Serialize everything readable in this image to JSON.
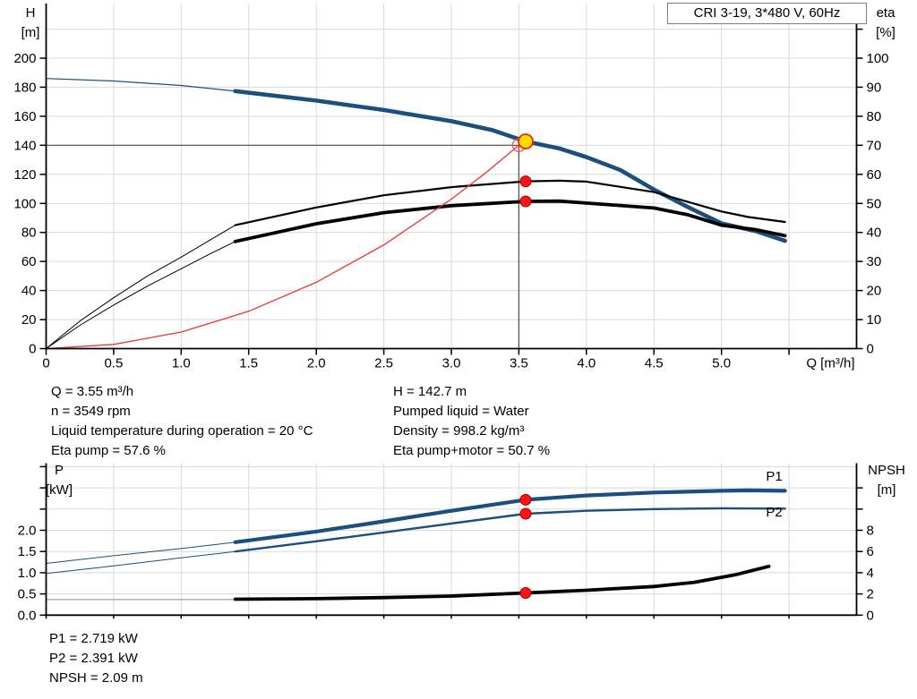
{
  "axis_titles": {
    "h": [
      "H",
      "[m]"
    ],
    "eta": [
      "eta",
      "[%]"
    ],
    "p": [
      "P",
      "[kW]"
    ],
    "npsh": [
      "NPSH",
      "[m]"
    ]
  },
  "annotations": {
    "left": [
      "Q = 3.55 m³/h",
      "n = 3549 rpm",
      "Liquid temperature during operation = 20 °C",
      "Eta pump = 57.6 %"
    ],
    "right": [
      "H = 142.7 m",
      "Pumped liquid = Water",
      "Density = 998.2 kg/m³",
      "Eta pump+motor = 50.7 %"
    ],
    "bottom": [
      "P1 = 2.719 kW",
      "P2 = 2.391 kW",
      "NPSH = 2.09 m"
    ]
  },
  "colors": {
    "curve_blue": "#1b4f7e",
    "curve_black": "#000000",
    "system_red": "#f0342c",
    "marker_red": "#ff1414",
    "marker_red_edge": "#a80000",
    "marker_yellow": "#ffdf00",
    "grid": "#d9d9d9",
    "crosshair": "#4d4d4d",
    "npsh_gray": "#8c8c8c"
  },
  "chart_data": [
    {
      "type": "line",
      "title": "CRI 3-19, 3*480 V, 60Hz",
      "x": {
        "label": "Q [m³/h]",
        "min": 0,
        "max": 6,
        "step": 0.5,
        "tick_max": 5.5,
        "label_max": 5.0,
        "ticklen": 7
      },
      "y_left": {
        "label": "H [m]",
        "min": 0,
        "max": 235,
        "step": 20,
        "grid_max": 220,
        "tick_max": 200,
        "label_max": 200,
        "dec": 0
      },
      "y_right": {
        "label": "eta [%]",
        "min": 0,
        "max": 113,
        "step": 10,
        "tick_max": 110,
        "label_max": 100,
        "dec": 0
      },
      "crosshair": {
        "q": 3.5,
        "h": 140
      },
      "series": [
        {
          "name": "qh-lead",
          "axis": "left",
          "color": "curve_blue",
          "width": 1.2,
          "points": [
            [
              0,
              186
            ],
            [
              0.5,
              184.3
            ],
            [
              1.0,
              181.2
            ],
            [
              1.4,
              177.3
            ]
          ]
        },
        {
          "name": "qh-curve",
          "axis": "left",
          "color": "curve_blue",
          "width": 4.6,
          "points": [
            [
              1.4,
              177.3
            ],
            [
              2.0,
              170.8
            ],
            [
              2.5,
              164.3
            ],
            [
              3.0,
              156.6
            ],
            [
              3.3,
              150.6
            ],
            [
              3.55,
              142.7
            ],
            [
              3.8,
              137.8
            ],
            [
              4.0,
              131.9
            ],
            [
              4.25,
              123
            ],
            [
              4.5,
              109.5
            ],
            [
              4.75,
              97.5
            ],
            [
              5.0,
              86.2
            ],
            [
              5.25,
              81
            ],
            [
              5.47,
              74.2
            ]
          ]
        },
        {
          "name": "eta-pump-lead",
          "axis": "right",
          "color": "curve_black",
          "width": 1,
          "points": [
            [
              0,
              0
            ],
            [
              0.25,
              9.5
            ],
            [
              0.5,
              17.5
            ],
            [
              0.75,
              25
            ],
            [
              1.0,
              31.5
            ],
            [
              1.2,
              37
            ],
            [
              1.4,
              42.5
            ]
          ]
        },
        {
          "name": "eta-pump",
          "axis": "right",
          "color": "curve_black",
          "width": 2.2,
          "points": [
            [
              1.4,
              42.5
            ],
            [
              2.0,
              48.6
            ],
            [
              2.5,
              52.8
            ],
            [
              3.0,
              55.6
            ],
            [
              3.55,
              57.6
            ],
            [
              3.8,
              57.8
            ],
            [
              4.0,
              57.5
            ],
            [
              4.5,
              53.9
            ],
            [
              5.0,
              47.2
            ],
            [
              5.2,
              45.3
            ],
            [
              5.47,
              43.6
            ]
          ]
        },
        {
          "name": "eta-pump-motor-lead",
          "axis": "right",
          "color": "curve_black",
          "width": 1,
          "points": [
            [
              0,
              0
            ],
            [
              0.25,
              8
            ],
            [
              0.5,
              15
            ],
            [
              0.75,
              21.5
            ],
            [
              1.0,
              27.5
            ],
            [
              1.2,
              32.3
            ],
            [
              1.4,
              36.9
            ]
          ]
        },
        {
          "name": "eta-pump-motor",
          "axis": "right",
          "color": "curve_black",
          "width": 3.8,
          "points": [
            [
              1.4,
              36.9
            ],
            [
              2.0,
              43
            ],
            [
              2.5,
              46.8
            ],
            [
              3.0,
              49.2
            ],
            [
              3.55,
              50.7
            ],
            [
              3.8,
              50.8
            ],
            [
              4.0,
              50.1
            ],
            [
              4.5,
              48.4
            ],
            [
              4.75,
              46.1
            ],
            [
              5.0,
              42.5
            ],
            [
              5.25,
              41
            ],
            [
              5.47,
              38.9
            ]
          ]
        },
        {
          "name": "system-curve",
          "axis": "left",
          "color": "system_red",
          "width": 1.3,
          "points": [
            [
              0,
              0
            ],
            [
              0.5,
              2.9
            ],
            [
              1.0,
              11.4
            ],
            [
              1.5,
              25.7
            ],
            [
              2.0,
              45.7
            ],
            [
              2.5,
              71.4
            ],
            [
              3.0,
              102.9
            ],
            [
              3.25,
              120.7
            ],
            [
              3.5,
              140
            ]
          ]
        }
      ],
      "markers": [
        {
          "kind": "open",
          "axis": "left",
          "q": 3.5,
          "v": 140
        },
        {
          "kind": "duty",
          "axis": "left",
          "q": 3.55,
          "v": 142.7
        },
        {
          "kind": "dot",
          "axis": "right",
          "q": 3.55,
          "v": 57.6
        },
        {
          "kind": "dot",
          "axis": "right",
          "q": 3.55,
          "v": 50.7
        }
      ]
    },
    {
      "type": "line",
      "title": "",
      "x": {
        "label": "",
        "min": 0,
        "max": 6,
        "step": 0.5,
        "tick_max": 5.5,
        "label_max": -1,
        "ticklen": 4
      },
      "y_left": {
        "label": "P [kW]",
        "min": 0,
        "max": 3.57,
        "step": 0.5,
        "grid_max": 3.5,
        "tick_max": 3.5,
        "label_max": 2.0,
        "dec": 1
      },
      "y_right": {
        "label": "NPSH [m]",
        "min": 0,
        "max": 14.3,
        "step": 2,
        "tick_max": 12,
        "label_max": 8,
        "dec": 0
      },
      "series": [
        {
          "name": "p1-lead",
          "axis": "left",
          "color": "curve_blue",
          "width": 1,
          "points": [
            [
              0,
              1.22
            ],
            [
              0.5,
              1.4
            ],
            [
              1.0,
              1.57
            ],
            [
              1.4,
              1.72
            ]
          ]
        },
        {
          "name": "p1-curve",
          "axis": "left",
          "color": "curve_blue",
          "width": 4.2,
          "points": [
            [
              1.4,
              1.72
            ],
            [
              2.0,
              1.97
            ],
            [
              2.5,
              2.21
            ],
            [
              3.0,
              2.46
            ],
            [
              3.55,
              2.719
            ],
            [
              4.0,
              2.82
            ],
            [
              4.5,
              2.89
            ],
            [
              5.0,
              2.93
            ],
            [
              5.2,
              2.94
            ],
            [
              5.47,
              2.93
            ]
          ]
        },
        {
          "name": "p2-lead",
          "axis": "left",
          "color": "curve_blue",
          "width": 1,
          "points": [
            [
              0,
              0.98
            ],
            [
              0.5,
              1.16
            ],
            [
              1.0,
              1.35
            ],
            [
              1.4,
              1.5
            ]
          ]
        },
        {
          "name": "p2-curve",
          "axis": "left",
          "color": "curve_blue",
          "width": 2.4,
          "points": [
            [
              1.4,
              1.5
            ],
            [
              2.0,
              1.74
            ],
            [
              2.5,
              1.95
            ],
            [
              3.0,
              2.16
            ],
            [
              3.55,
              2.391
            ],
            [
              4.0,
              2.46
            ],
            [
              4.5,
              2.5
            ],
            [
              5.0,
              2.52
            ],
            [
              5.47,
              2.51
            ]
          ]
        },
        {
          "name": "npsh-lead",
          "axis": "right",
          "color": "npsh_gray",
          "width": 1,
          "points": [
            [
              0,
              1.47
            ],
            [
              1.4,
              1.47
            ]
          ]
        },
        {
          "name": "npsh-curve",
          "axis": "right",
          "color": "curve_black",
          "width": 3.8,
          "points": [
            [
              1.4,
              1.5
            ],
            [
              2.0,
              1.55
            ],
            [
              2.5,
              1.65
            ],
            [
              3.0,
              1.8
            ],
            [
              3.55,
              2.09
            ],
            [
              4.0,
              2.35
            ],
            [
              4.5,
              2.7
            ],
            [
              4.8,
              3.1
            ],
            [
              5.1,
              3.8
            ],
            [
              5.35,
              4.6
            ]
          ]
        }
      ],
      "labels": [
        {
          "text": "P1",
          "axis": "left",
          "q": 5.33,
          "v": 3.17
        },
        {
          "text": "P2",
          "axis": "left",
          "q": 5.33,
          "v": 2.33
        }
      ],
      "markers": [
        {
          "kind": "dot",
          "axis": "left",
          "q": 3.55,
          "v": 2.719
        },
        {
          "kind": "dot",
          "axis": "left",
          "q": 3.55,
          "v": 2.391
        },
        {
          "kind": "dot",
          "axis": "right",
          "q": 3.55,
          "v": 2.09
        }
      ]
    }
  ]
}
